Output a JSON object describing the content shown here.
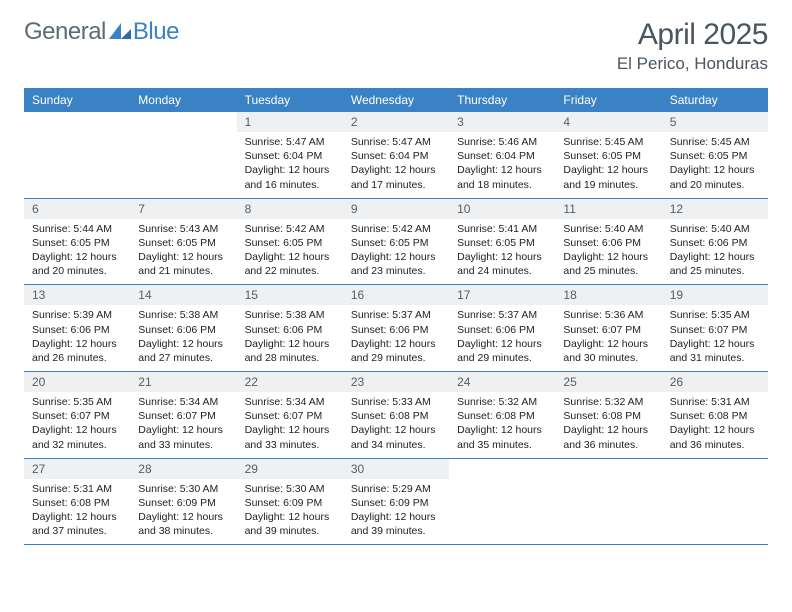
{
  "brand": {
    "part1": "General",
    "part2": "Blue"
  },
  "title": "April 2025",
  "location": "El Perico, Honduras",
  "colors": {
    "header_bg": "#3a82c4",
    "header_text": "#ffffff",
    "daynum_bg": "#eef0f2",
    "border": "#3a82c4",
    "page_bg": "#ffffff",
    "text_muted": "#4a5560"
  },
  "weekdays": [
    "Sunday",
    "Monday",
    "Tuesday",
    "Wednesday",
    "Thursday",
    "Friday",
    "Saturday"
  ],
  "weeks": [
    [
      null,
      null,
      {
        "n": "1",
        "sr": "Sunrise: 5:47 AM",
        "ss": "Sunset: 6:04 PM",
        "d1": "Daylight: 12 hours",
        "d2": "and 16 minutes."
      },
      {
        "n": "2",
        "sr": "Sunrise: 5:47 AM",
        "ss": "Sunset: 6:04 PM",
        "d1": "Daylight: 12 hours",
        "d2": "and 17 minutes."
      },
      {
        "n": "3",
        "sr": "Sunrise: 5:46 AM",
        "ss": "Sunset: 6:04 PM",
        "d1": "Daylight: 12 hours",
        "d2": "and 18 minutes."
      },
      {
        "n": "4",
        "sr": "Sunrise: 5:45 AM",
        "ss": "Sunset: 6:05 PM",
        "d1": "Daylight: 12 hours",
        "d2": "and 19 minutes."
      },
      {
        "n": "5",
        "sr": "Sunrise: 5:45 AM",
        "ss": "Sunset: 6:05 PM",
        "d1": "Daylight: 12 hours",
        "d2": "and 20 minutes."
      }
    ],
    [
      {
        "n": "6",
        "sr": "Sunrise: 5:44 AM",
        "ss": "Sunset: 6:05 PM",
        "d1": "Daylight: 12 hours",
        "d2": "and 20 minutes."
      },
      {
        "n": "7",
        "sr": "Sunrise: 5:43 AM",
        "ss": "Sunset: 6:05 PM",
        "d1": "Daylight: 12 hours",
        "d2": "and 21 minutes."
      },
      {
        "n": "8",
        "sr": "Sunrise: 5:42 AM",
        "ss": "Sunset: 6:05 PM",
        "d1": "Daylight: 12 hours",
        "d2": "and 22 minutes."
      },
      {
        "n": "9",
        "sr": "Sunrise: 5:42 AM",
        "ss": "Sunset: 6:05 PM",
        "d1": "Daylight: 12 hours",
        "d2": "and 23 minutes."
      },
      {
        "n": "10",
        "sr": "Sunrise: 5:41 AM",
        "ss": "Sunset: 6:05 PM",
        "d1": "Daylight: 12 hours",
        "d2": "and 24 minutes."
      },
      {
        "n": "11",
        "sr": "Sunrise: 5:40 AM",
        "ss": "Sunset: 6:06 PM",
        "d1": "Daylight: 12 hours",
        "d2": "and 25 minutes."
      },
      {
        "n": "12",
        "sr": "Sunrise: 5:40 AM",
        "ss": "Sunset: 6:06 PM",
        "d1": "Daylight: 12 hours",
        "d2": "and 25 minutes."
      }
    ],
    [
      {
        "n": "13",
        "sr": "Sunrise: 5:39 AM",
        "ss": "Sunset: 6:06 PM",
        "d1": "Daylight: 12 hours",
        "d2": "and 26 minutes."
      },
      {
        "n": "14",
        "sr": "Sunrise: 5:38 AM",
        "ss": "Sunset: 6:06 PM",
        "d1": "Daylight: 12 hours",
        "d2": "and 27 minutes."
      },
      {
        "n": "15",
        "sr": "Sunrise: 5:38 AM",
        "ss": "Sunset: 6:06 PM",
        "d1": "Daylight: 12 hours",
        "d2": "and 28 minutes."
      },
      {
        "n": "16",
        "sr": "Sunrise: 5:37 AM",
        "ss": "Sunset: 6:06 PM",
        "d1": "Daylight: 12 hours",
        "d2": "and 29 minutes."
      },
      {
        "n": "17",
        "sr": "Sunrise: 5:37 AM",
        "ss": "Sunset: 6:06 PM",
        "d1": "Daylight: 12 hours",
        "d2": "and 29 minutes."
      },
      {
        "n": "18",
        "sr": "Sunrise: 5:36 AM",
        "ss": "Sunset: 6:07 PM",
        "d1": "Daylight: 12 hours",
        "d2": "and 30 minutes."
      },
      {
        "n": "19",
        "sr": "Sunrise: 5:35 AM",
        "ss": "Sunset: 6:07 PM",
        "d1": "Daylight: 12 hours",
        "d2": "and 31 minutes."
      }
    ],
    [
      {
        "n": "20",
        "sr": "Sunrise: 5:35 AM",
        "ss": "Sunset: 6:07 PM",
        "d1": "Daylight: 12 hours",
        "d2": "and 32 minutes."
      },
      {
        "n": "21",
        "sr": "Sunrise: 5:34 AM",
        "ss": "Sunset: 6:07 PM",
        "d1": "Daylight: 12 hours",
        "d2": "and 33 minutes."
      },
      {
        "n": "22",
        "sr": "Sunrise: 5:34 AM",
        "ss": "Sunset: 6:07 PM",
        "d1": "Daylight: 12 hours",
        "d2": "and 33 minutes."
      },
      {
        "n": "23",
        "sr": "Sunrise: 5:33 AM",
        "ss": "Sunset: 6:08 PM",
        "d1": "Daylight: 12 hours",
        "d2": "and 34 minutes."
      },
      {
        "n": "24",
        "sr": "Sunrise: 5:32 AM",
        "ss": "Sunset: 6:08 PM",
        "d1": "Daylight: 12 hours",
        "d2": "and 35 minutes."
      },
      {
        "n": "25",
        "sr": "Sunrise: 5:32 AM",
        "ss": "Sunset: 6:08 PM",
        "d1": "Daylight: 12 hours",
        "d2": "and 36 minutes."
      },
      {
        "n": "26",
        "sr": "Sunrise: 5:31 AM",
        "ss": "Sunset: 6:08 PM",
        "d1": "Daylight: 12 hours",
        "d2": "and 36 minutes."
      }
    ],
    [
      {
        "n": "27",
        "sr": "Sunrise: 5:31 AM",
        "ss": "Sunset: 6:08 PM",
        "d1": "Daylight: 12 hours",
        "d2": "and 37 minutes."
      },
      {
        "n": "28",
        "sr": "Sunrise: 5:30 AM",
        "ss": "Sunset: 6:09 PM",
        "d1": "Daylight: 12 hours",
        "d2": "and 38 minutes."
      },
      {
        "n": "29",
        "sr": "Sunrise: 5:30 AM",
        "ss": "Sunset: 6:09 PM",
        "d1": "Daylight: 12 hours",
        "d2": "and 39 minutes."
      },
      {
        "n": "30",
        "sr": "Sunrise: 5:29 AM",
        "ss": "Sunset: 6:09 PM",
        "d1": "Daylight: 12 hours",
        "d2": "and 39 minutes."
      },
      null,
      null,
      null
    ]
  ]
}
